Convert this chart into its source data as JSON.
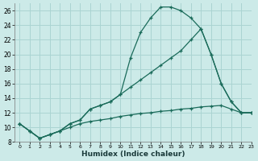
{
  "xlabel": "Humidex (Indice chaleur)",
  "bg_color": "#cceae8",
  "grid_color": "#aad4d2",
  "line_color": "#1a6b5a",
  "xlim": [
    -0.5,
    23
  ],
  "ylim": [
    8,
    27
  ],
  "xticks": [
    0,
    1,
    2,
    3,
    4,
    5,
    6,
    7,
    8,
    9,
    10,
    11,
    12,
    13,
    14,
    15,
    16,
    17,
    18,
    19,
    20,
    21,
    22,
    23
  ],
  "yticks": [
    8,
    10,
    12,
    14,
    16,
    18,
    20,
    22,
    24,
    26
  ],
  "curve1_x": [
    0,
    1,
    2,
    3,
    4,
    5,
    6,
    7,
    8,
    9,
    10,
    11,
    12,
    13,
    14,
    15,
    16,
    17,
    18,
    19,
    20,
    21,
    22,
    23
  ],
  "curve1_y": [
    10.5,
    9.5,
    8.5,
    9.0,
    9.5,
    10.5,
    11.0,
    12.5,
    13.0,
    13.5,
    14.5,
    19.5,
    23.0,
    25.0,
    26.5,
    26.5,
    26.0,
    25.0,
    23.5,
    20.0,
    16.0,
    13.5,
    12.0,
    12.0
  ],
  "curve2_x": [
    0,
    1,
    2,
    3,
    4,
    5,
    6,
    7,
    8,
    9,
    10,
    11,
    12,
    13,
    14,
    15,
    16,
    17,
    18,
    19,
    20,
    21,
    22,
    23
  ],
  "curve2_y": [
    10.5,
    9.5,
    8.5,
    9.0,
    9.5,
    10.5,
    11.0,
    12.5,
    13.0,
    13.5,
    14.5,
    15.5,
    16.5,
    17.5,
    18.5,
    19.5,
    20.5,
    22.0,
    23.5,
    20.0,
    16.0,
    13.5,
    12.0,
    12.0
  ],
  "curve3_x": [
    0,
    1,
    2,
    3,
    4,
    5,
    6,
    7,
    8,
    9,
    10,
    11,
    12,
    13,
    14,
    15,
    16,
    17,
    18,
    19,
    20,
    21,
    22,
    23
  ],
  "curve3_y": [
    10.5,
    9.5,
    8.5,
    9.0,
    9.5,
    10.0,
    10.5,
    10.8,
    11.0,
    11.2,
    11.5,
    11.7,
    11.9,
    12.0,
    12.2,
    12.3,
    12.5,
    12.6,
    12.8,
    12.9,
    13.0,
    12.5,
    12.0,
    12.0
  ]
}
